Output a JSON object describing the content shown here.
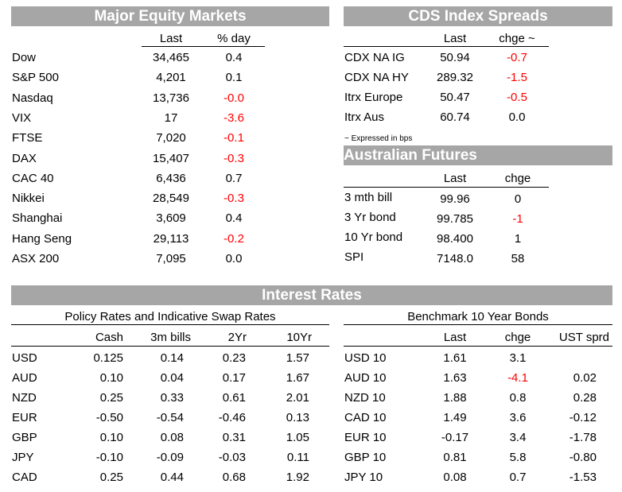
{
  "equity": {
    "title": "Major Equity Markets",
    "col_last": "Last",
    "col_day": "% day",
    "rows": [
      {
        "name": "Dow",
        "last": "34,465",
        "day": "0.4",
        "neg": false
      },
      {
        "name": "S&P 500",
        "last": "4,201",
        "day": "0.1",
        "neg": false
      },
      {
        "name": "Nasdaq",
        "last": "13,736",
        "day": "-0.0",
        "neg": true
      },
      {
        "name": "VIX",
        "last": "17",
        "day": "-3.6",
        "neg": true
      },
      {
        "name": "FTSE",
        "last": "7,020",
        "day": "-0.1",
        "neg": true
      },
      {
        "name": "DAX",
        "last": "15,407",
        "day": "-0.3",
        "neg": true
      },
      {
        "name": "CAC 40",
        "last": "6,436",
        "day": "0.7",
        "neg": false
      },
      {
        "name": "Nikkei",
        "last": "28,549",
        "day": "-0.3",
        "neg": true
      },
      {
        "name": "Shanghai",
        "last": "3,609",
        "day": "0.4",
        "neg": false
      },
      {
        "name": "Hang Seng",
        "last": "29,113",
        "day": "-0.2",
        "neg": true
      },
      {
        "name": "ASX 200",
        "last": "7,095",
        "day": "0.0",
        "neg": false
      }
    ]
  },
  "cds": {
    "title": "CDS Index Spreads",
    "col_last": "Last",
    "col_chg": "chge ~",
    "rows": [
      {
        "name": "CDX NA IG",
        "last": "50.94",
        "chg": "-0.7",
        "neg": true
      },
      {
        "name": "CDX NA HY",
        "last": "289.32",
        "chg": "-1.5",
        "neg": true
      },
      {
        "name": "Itrx Europe",
        "last": "50.47",
        "chg": "-0.5",
        "neg": true
      },
      {
        "name": "Itrx Aus",
        "last": "60.74",
        "chg": "0.0",
        "neg": false
      }
    ],
    "note": "~ Expressed in bps"
  },
  "aus_futures": {
    "title": "Australian Futures",
    "col_last": "Last",
    "col_chg": "chge",
    "rows": [
      {
        "name": "3 mth bill",
        "last": "99.96",
        "chg": "0",
        "neg": false
      },
      {
        "name": "3 Yr bond",
        "last": "99.785",
        "chg": "-1",
        "neg": true
      },
      {
        "name": "10 Yr bond",
        "last": "98.400",
        "chg": "1",
        "neg": false
      },
      {
        "name": "SPI",
        "last": "7148.0",
        "chg": "58",
        "neg": false
      }
    ]
  },
  "interest": {
    "title": "Interest Rates",
    "policy": {
      "subtitle": "Policy Rates and Indicative Swap Rates",
      "cols": [
        "Cash",
        "3m bills",
        "2Yr",
        "10Yr"
      ],
      "rows": [
        {
          "name": "USD",
          "cash": "0.125",
          "bills": "0.14",
          "y2": "0.23",
          "y10": "1.57"
        },
        {
          "name": "AUD",
          "cash": "0.10",
          "bills": "0.04",
          "y2": "0.17",
          "y10": "1.67"
        },
        {
          "name": "NZD",
          "cash": "0.25",
          "bills": "0.33",
          "y2": "0.61",
          "y10": "2.01"
        },
        {
          "name": "EUR",
          "cash": "-0.50",
          "bills": "-0.54",
          "y2": "-0.46",
          "y10": "0.13"
        },
        {
          "name": "GBP",
          "cash": "0.10",
          "bills": "0.08",
          "y2": "0.31",
          "y10": "1.05"
        },
        {
          "name": "JPY",
          "cash": "-0.10",
          "bills": "-0.09",
          "y2": "-0.03",
          "y10": "0.11"
        },
        {
          "name": "CAD",
          "cash": "0.25",
          "bills": "0.44",
          "y2": "0.68",
          "y10": "1.92"
        }
      ]
    },
    "bonds": {
      "subtitle": "Benchmark 10 Year Bonds",
      "cols": [
        "Last",
        "chge",
        "UST sprd"
      ],
      "rows": [
        {
          "name": "USD 10",
          "last": "1.61",
          "chg": "3.1",
          "spread": "",
          "neg": false
        },
        {
          "name": "AUD 10",
          "last": "1.63",
          "chg": "-4.1",
          "spread": "0.02",
          "neg": true
        },
        {
          "name": "NZD 10",
          "last": "1.88",
          "chg": "0.8",
          "spread": "0.28",
          "neg": false
        },
        {
          "name": "CAD 10",
          "last": "1.49",
          "chg": "3.6",
          "spread": "-0.12",
          "neg": false
        },
        {
          "name": "EUR 10",
          "last": "-0.17",
          "chg": "3.4",
          "spread": "-1.78",
          "neg": false
        },
        {
          "name": "GBP 10",
          "last": "0.81",
          "chg": "5.8",
          "spread": "-0.80",
          "neg": false
        },
        {
          "name": "JPY 10",
          "last": "0.08",
          "chg": "0.7",
          "spread": "-1.53",
          "neg": false
        }
      ]
    }
  }
}
